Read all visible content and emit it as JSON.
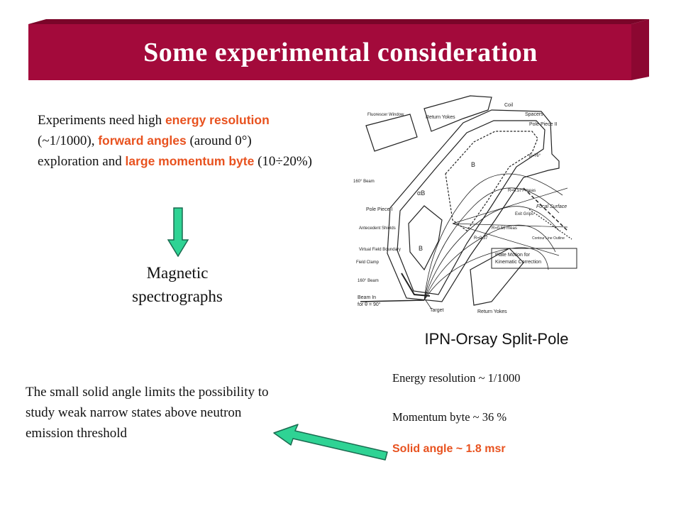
{
  "slide": {
    "title": "Some experimental consideration",
    "colors": {
      "banner": "#a30a3b",
      "accent": "#e8521f",
      "arrow": "#2fd394"
    }
  },
  "intro": {
    "t1": "Experiments need high ",
    "h1": "energy resolution",
    "t2": " (~1/1000), ",
    "h2": "forward angles",
    "t3": " (around 0°) exploration and ",
    "h3": "large momentum byte",
    "t4": " (10÷20%)"
  },
  "conclusion": {
    "line1": "Magnetic",
    "line2": "spectrographs"
  },
  "diagram_labels": {
    "return_yokes_top": "Return Yokes",
    "coil": "Coil",
    "spacers": "Spacers",
    "pole_piece_2": "Pole Piece II",
    "fluorescer": "Fluorescer Window",
    "beam_160_top": "160° Beam",
    "pole_piece_1": "Pole Piece I",
    "antecedent_shields": "Antecedent Shields",
    "virtual_field": "Virtual Field Boundary",
    "field_clamp": "Field Clamp",
    "beam_160_bottom": "160° Beam",
    "beam_in": "Beam In",
    "beam_in_angle": "for θ = 90°",
    "target": "Target",
    "return_yokes_bottom": "Return Yokes",
    "plate_motion": "Plate Motion for",
    "kinematic": "Kinematic Correction",
    "focal_surface": "Focal Surface",
    "exit_grips": "Exit Grips",
    "contour_line": "Contour Line Outline",
    "b_ii": "B",
    "b_i": "B",
    "alpha_b": "αB",
    "r_top": "R=0.577 meas",
    "r_mid": "R=0.56 meas",
    "r_low": "R=0.37",
    "label_76": "β=76°"
  },
  "spectrograph": {
    "name": "IPN-Orsay Split-Pole",
    "energy_resolution": "Energy resolution ~ 1/1000",
    "momentum_byte": "Momentum byte ~ 36 %",
    "solid_angle": "Solid angle ~  1.8 msr"
  },
  "limitation": {
    "text": "The small solid angle limits the possibility to study weak narrow states above neutron emission threshold"
  }
}
